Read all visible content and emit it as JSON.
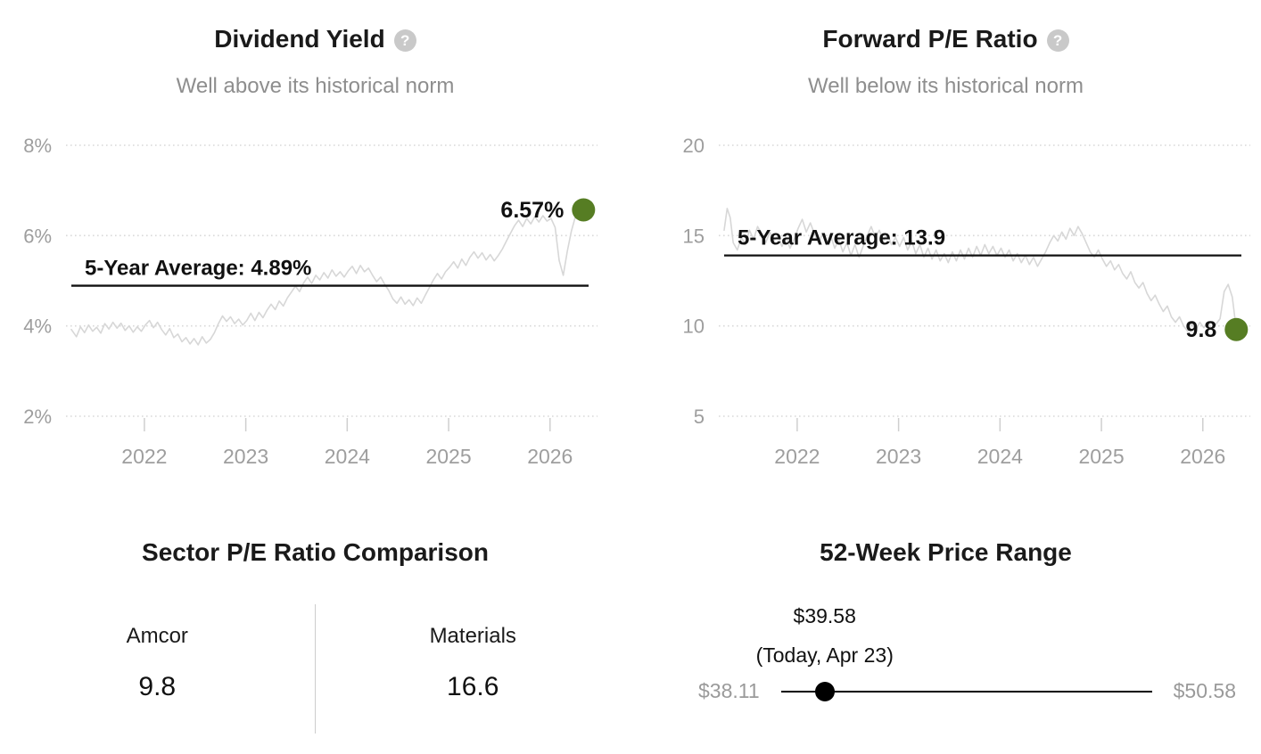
{
  "colors": {
    "series_line": "#d7d7d7",
    "average_line": "#111111",
    "marker": "#567d23",
    "grid": "#d9d9d9",
    "tick": "#cfcfcf",
    "axis_text": "#9e9e9e",
    "muted_text": "#8e8e8e",
    "title_text": "#1a1a1a",
    "help_icon_bg": "#c9c9c9",
    "slider": "#000000"
  },
  "help_icon_glyph": "?",
  "chart_data": [
    {
      "type": "line",
      "title": "Dividend Yield",
      "subtitle": "Well above its historical norm",
      "xlim": [
        2021.28,
        2026.38
      ],
      "xticks": [
        2022,
        2023,
        2024,
        2025,
        2026
      ],
      "yticks": [
        {
          "label": "8%",
          "value": 8
        },
        {
          "label": "6%",
          "value": 6
        },
        {
          "label": "4%",
          "value": 4
        },
        {
          "label": "2%",
          "value": 2
        }
      ],
      "average": 4.89,
      "average_label": "5-Year Average: 4.89%",
      "current_value": 6.57,
      "current_label": "6.57%",
      "grid": true,
      "series": [
        [
          2021.28,
          3.92
        ],
        [
          2021.33,
          3.76
        ],
        [
          2021.37,
          3.98
        ],
        [
          2021.41,
          3.85
        ],
        [
          2021.45,
          4.02
        ],
        [
          2021.49,
          3.88
        ],
        [
          2021.53,
          3.97
        ],
        [
          2021.57,
          3.84
        ],
        [
          2021.61,
          4.05
        ],
        [
          2021.65,
          3.93
        ],
        [
          2021.69,
          4.08
        ],
        [
          2021.73,
          3.95
        ],
        [
          2021.77,
          4.06
        ],
        [
          2021.81,
          3.9
        ],
        [
          2021.85,
          4.0
        ],
        [
          2021.89,
          3.86
        ],
        [
          2021.93,
          3.98
        ],
        [
          2021.97,
          3.88
        ],
        [
          2022.01,
          4.02
        ],
        [
          2022.05,
          4.12
        ],
        [
          2022.09,
          3.96
        ],
        [
          2022.13,
          4.08
        ],
        [
          2022.17,
          3.92
        ],
        [
          2022.21,
          3.8
        ],
        [
          2022.25,
          3.94
        ],
        [
          2022.29,
          3.74
        ],
        [
          2022.33,
          3.82
        ],
        [
          2022.37,
          3.65
        ],
        [
          2022.41,
          3.74
        ],
        [
          2022.45,
          3.6
        ],
        [
          2022.49,
          3.72
        ],
        [
          2022.53,
          3.58
        ],
        [
          2022.57,
          3.76
        ],
        [
          2022.61,
          3.62
        ],
        [
          2022.65,
          3.7
        ],
        [
          2022.69,
          3.85
        ],
        [
          2022.73,
          4.05
        ],
        [
          2022.77,
          4.22
        ],
        [
          2022.81,
          4.1
        ],
        [
          2022.85,
          4.2
        ],
        [
          2022.89,
          4.05
        ],
        [
          2022.93,
          4.15
        ],
        [
          2022.97,
          4.02
        ],
        [
          2023.01,
          4.12
        ],
        [
          2023.05,
          4.28
        ],
        [
          2023.09,
          4.12
        ],
        [
          2023.13,
          4.3
        ],
        [
          2023.17,
          4.18
        ],
        [
          2023.21,
          4.35
        ],
        [
          2023.25,
          4.48
        ],
        [
          2023.29,
          4.36
        ],
        [
          2023.33,
          4.55
        ],
        [
          2023.37,
          4.44
        ],
        [
          2023.41,
          4.62
        ],
        [
          2023.45,
          4.75
        ],
        [
          2023.49,
          4.88
        ],
        [
          2023.53,
          4.76
        ],
        [
          2023.57,
          4.95
        ],
        [
          2023.61,
          5.08
        ],
        [
          2023.65,
          4.94
        ],
        [
          2023.69,
          5.12
        ],
        [
          2023.73,
          5.02
        ],
        [
          2023.77,
          5.18
        ],
        [
          2023.81,
          5.06
        ],
        [
          2023.85,
          5.24
        ],
        [
          2023.89,
          5.1
        ],
        [
          2023.93,
          5.2
        ],
        [
          2023.97,
          5.08
        ],
        [
          2024.01,
          5.22
        ],
        [
          2024.05,
          5.32
        ],
        [
          2024.09,
          5.16
        ],
        [
          2024.13,
          5.34
        ],
        [
          2024.17,
          5.2
        ],
        [
          2024.21,
          5.28
        ],
        [
          2024.25,
          5.12
        ],
        [
          2024.29,
          4.98
        ],
        [
          2024.33,
          5.08
        ],
        [
          2024.37,
          4.92
        ],
        [
          2024.41,
          4.78
        ],
        [
          2024.45,
          4.6
        ],
        [
          2024.49,
          4.5
        ],
        [
          2024.53,
          4.64
        ],
        [
          2024.57,
          4.48
        ],
        [
          2024.61,
          4.58
        ],
        [
          2024.65,
          4.45
        ],
        [
          2024.69,
          4.62
        ],
        [
          2024.73,
          4.5
        ],
        [
          2024.77,
          4.68
        ],
        [
          2024.81,
          4.85
        ],
        [
          2024.85,
          5.02
        ],
        [
          2024.89,
          5.16
        ],
        [
          2024.93,
          5.04
        ],
        [
          2024.97,
          5.2
        ],
        [
          2025.01,
          5.3
        ],
        [
          2025.05,
          5.42
        ],
        [
          2025.09,
          5.28
        ],
        [
          2025.13,
          5.48
        ],
        [
          2025.17,
          5.34
        ],
        [
          2025.21,
          5.52
        ],
        [
          2025.25,
          5.64
        ],
        [
          2025.29,
          5.5
        ],
        [
          2025.33,
          5.62
        ],
        [
          2025.37,
          5.46
        ],
        [
          2025.41,
          5.58
        ],
        [
          2025.45,
          5.44
        ],
        [
          2025.49,
          5.56
        ],
        [
          2025.53,
          5.7
        ],
        [
          2025.57,
          5.88
        ],
        [
          2025.61,
          6.05
        ],
        [
          2025.65,
          6.22
        ],
        [
          2025.69,
          6.34
        ],
        [
          2025.73,
          6.2
        ],
        [
          2025.77,
          6.38
        ],
        [
          2025.81,
          6.26
        ],
        [
          2025.85,
          6.42
        ],
        [
          2025.89,
          6.3
        ],
        [
          2025.93,
          6.44
        ],
        [
          2025.97,
          6.32
        ],
        [
          2026.01,
          6.38
        ],
        [
          2026.05,
          6.18
        ],
        [
          2026.09,
          5.45
        ],
        [
          2026.13,
          5.12
        ],
        [
          2026.17,
          5.65
        ],
        [
          2026.21,
          6.1
        ],
        [
          2026.25,
          6.42
        ],
        [
          2026.29,
          6.5
        ],
        [
          2026.33,
          6.57
        ]
      ]
    },
    {
      "type": "line",
      "title": "Forward P/E Ratio",
      "subtitle": "Well below its historical norm",
      "xlim": [
        2021.28,
        2026.38
      ],
      "xticks": [
        2022,
        2023,
        2024,
        2025,
        2026
      ],
      "yticks": [
        {
          "label": "20",
          "value": 20
        },
        {
          "label": "15",
          "value": 15
        },
        {
          "label": "10",
          "value": 10
        },
        {
          "label": "5",
          "value": 5
        }
      ],
      "average": 13.9,
      "average_label": "5-Year Average: 13.9",
      "current_value": 9.8,
      "current_label": "9.8",
      "grid": true,
      "series": [
        [
          2021.28,
          15.3
        ],
        [
          2021.31,
          16.5
        ],
        [
          2021.34,
          16.0
        ],
        [
          2021.37,
          14.6
        ],
        [
          2021.41,
          14.2
        ],
        [
          2021.45,
          14.9
        ],
        [
          2021.49,
          14.5
        ],
        [
          2021.53,
          15.3
        ],
        [
          2021.57,
          14.8
        ],
        [
          2021.61,
          15.5
        ],
        [
          2021.65,
          15.1
        ],
        [
          2021.69,
          14.6
        ],
        [
          2021.73,
          15.2
        ],
        [
          2021.77,
          14.7
        ],
        [
          2021.81,
          15.0
        ],
        [
          2021.85,
          14.4
        ],
        [
          2021.89,
          14.9
        ],
        [
          2021.93,
          14.3
        ],
        [
          2021.97,
          14.8
        ],
        [
          2022.01,
          15.4
        ],
        [
          2022.05,
          15.9
        ],
        [
          2022.09,
          15.2
        ],
        [
          2022.13,
          15.7
        ],
        [
          2022.17,
          15.1
        ],
        [
          2022.21,
          14.6
        ],
        [
          2022.25,
          15.1
        ],
        [
          2022.29,
          14.5
        ],
        [
          2022.33,
          15.0
        ],
        [
          2022.37,
          14.3
        ],
        [
          2022.41,
          14.8
        ],
        [
          2022.45,
          14.1
        ],
        [
          2022.49,
          14.6
        ],
        [
          2022.53,
          13.9
        ],
        [
          2022.57,
          14.5
        ],
        [
          2022.61,
          13.8
        ],
        [
          2022.65,
          14.4
        ],
        [
          2022.69,
          15.0
        ],
        [
          2022.73,
          15.5
        ],
        [
          2022.77,
          14.9
        ],
        [
          2022.81,
          15.3
        ],
        [
          2022.85,
          14.7
        ],
        [
          2022.89,
          15.1
        ],
        [
          2022.93,
          14.5
        ],
        [
          2022.97,
          14.9
        ],
        [
          2023.01,
          14.4
        ],
        [
          2023.05,
          14.9
        ],
        [
          2023.09,
          14.2
        ],
        [
          2023.13,
          14.7
        ],
        [
          2023.17,
          14.0
        ],
        [
          2023.21,
          14.5
        ],
        [
          2023.25,
          13.8
        ],
        [
          2023.29,
          14.3
        ],
        [
          2023.33,
          13.7
        ],
        [
          2023.37,
          14.2
        ],
        [
          2023.41,
          13.6
        ],
        [
          2023.45,
          14.0
        ],
        [
          2023.49,
          13.5
        ],
        [
          2023.53,
          14.1
        ],
        [
          2023.57,
          13.6
        ],
        [
          2023.61,
          14.2
        ],
        [
          2023.65,
          13.7
        ],
        [
          2023.69,
          14.3
        ],
        [
          2023.73,
          13.8
        ],
        [
          2023.77,
          14.4
        ],
        [
          2023.81,
          13.9
        ],
        [
          2023.85,
          14.5
        ],
        [
          2023.89,
          14.0
        ],
        [
          2023.93,
          14.4
        ],
        [
          2023.97,
          13.9
        ],
        [
          2024.01,
          14.3
        ],
        [
          2024.05,
          13.8
        ],
        [
          2024.09,
          14.2
        ],
        [
          2024.13,
          13.6
        ],
        [
          2024.17,
          14.0
        ],
        [
          2024.21,
          13.5
        ],
        [
          2024.25,
          13.9
        ],
        [
          2024.29,
          13.4
        ],
        [
          2024.33,
          13.8
        ],
        [
          2024.37,
          13.3
        ],
        [
          2024.41,
          13.7
        ],
        [
          2024.45,
          14.1
        ],
        [
          2024.49,
          14.6
        ],
        [
          2024.53,
          15.0
        ],
        [
          2024.57,
          14.7
        ],
        [
          2024.61,
          15.2
        ],
        [
          2024.65,
          14.8
        ],
        [
          2024.69,
          15.4
        ],
        [
          2024.73,
          15.0
        ],
        [
          2024.77,
          15.5
        ],
        [
          2024.81,
          15.1
        ],
        [
          2024.85,
          14.6
        ],
        [
          2024.89,
          14.1
        ],
        [
          2024.93,
          13.8
        ],
        [
          2024.97,
          14.2
        ],
        [
          2025.01,
          13.7
        ],
        [
          2025.05,
          13.3
        ],
        [
          2025.09,
          13.6
        ],
        [
          2025.13,
          13.1
        ],
        [
          2025.17,
          13.4
        ],
        [
          2025.21,
          12.9
        ],
        [
          2025.25,
          12.6
        ],
        [
          2025.29,
          13.0
        ],
        [
          2025.33,
          12.4
        ],
        [
          2025.37,
          12.1
        ],
        [
          2025.41,
          12.4
        ],
        [
          2025.45,
          11.8
        ],
        [
          2025.49,
          11.4
        ],
        [
          2025.53,
          11.7
        ],
        [
          2025.57,
          11.2
        ],
        [
          2025.61,
          10.8
        ],
        [
          2025.65,
          11.1
        ],
        [
          2025.69,
          10.5
        ],
        [
          2025.73,
          10.2
        ],
        [
          2025.77,
          10.5
        ],
        [
          2025.81,
          10.0
        ],
        [
          2025.85,
          9.7
        ],
        [
          2025.89,
          10.1
        ],
        [
          2025.93,
          9.8
        ],
        [
          2025.97,
          10.2
        ],
        [
          2026.01,
          9.9
        ],
        [
          2026.05,
          10.2
        ],
        [
          2026.09,
          9.8
        ],
        [
          2026.13,
          10.1
        ],
        [
          2026.17,
          10.4
        ],
        [
          2026.21,
          11.9
        ],
        [
          2026.25,
          12.3
        ],
        [
          2026.29,
          11.6
        ],
        [
          2026.33,
          9.8
        ]
      ]
    }
  ],
  "sector_comparison": {
    "title": "Sector P/E Ratio Comparison",
    "columns": [
      {
        "label": "Amcor",
        "value": "9.8"
      },
      {
        "label": "Materials",
        "value": "16.6"
      }
    ]
  },
  "price_range": {
    "title": "52-Week Price Range",
    "current_price": "$39.58",
    "current_caption": "(Today, Apr 23)",
    "low_label": "$38.11",
    "high_label": "$50.58",
    "low_value": 38.11,
    "high_value": 50.58,
    "current_value": 39.58
  }
}
